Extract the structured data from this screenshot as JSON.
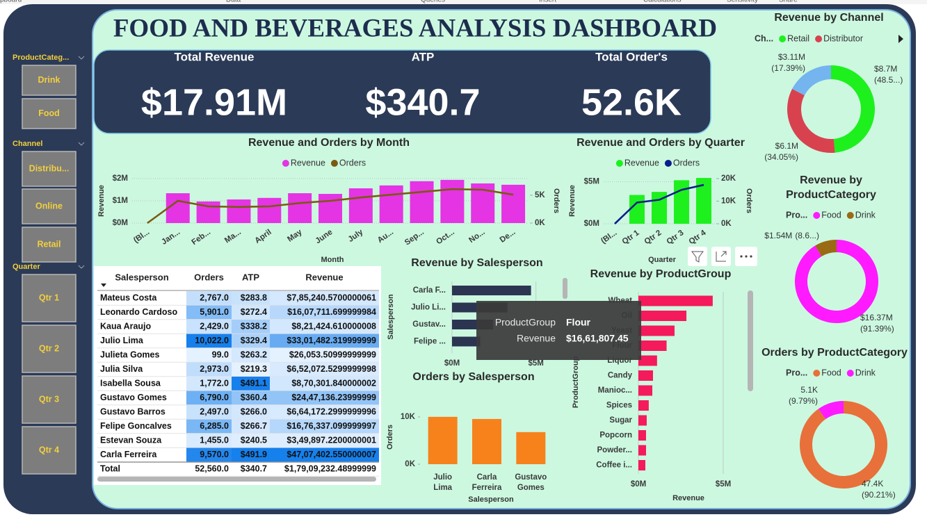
{
  "ribbon": [
    "pboard",
    "Data",
    "Queries",
    "Insert",
    "Calculations",
    "Sensitivity",
    "Share"
  ],
  "title": "FOOD AND BEVERAGES ANALYSIS DASHBOARD",
  "kpis": [
    {
      "label": "Total Revenue",
      "value": "$17.91M"
    },
    {
      "label": "ATP",
      "value": "$340.7"
    },
    {
      "label": "Total Order's",
      "value": "52.6K"
    }
  ],
  "slicers": [
    {
      "title": "ProductCateg...",
      "items": [
        "Drink",
        "Food"
      ]
    },
    {
      "title": "Channel",
      "items": [
        "Distribu...",
        "Online",
        "Retail"
      ]
    },
    {
      "title": "Quarter",
      "items": [
        "Qtr 1",
        "Qtr 2",
        "Qtr 3",
        "Qtr 4"
      ]
    }
  ],
  "table": {
    "columns": [
      "Salesperson",
      "Orders",
      "ATP",
      "Revenue"
    ],
    "rows": [
      [
        "Mateus Costa",
        "2,767.0",
        "$283.8",
        "$7,85,240.5700000061"
      ],
      [
        "Leonardo Cardoso",
        "5,901.0",
        "$272.4",
        "$16,07,711.699999984"
      ],
      [
        "Kaua Araujo",
        "2,429.0",
        "$338.2",
        "$8,21,424.610000008"
      ],
      [
        "Julio Lima",
        "10,022.0",
        "$329.4",
        "$33,01,482.319999999"
      ],
      [
        "Julieta Gomes",
        "99.0",
        "$263.2",
        "$26,053.50999999999"
      ],
      [
        "Julia Silva",
        "2,973.0",
        "$219.3",
        "$6,52,072.5299999998"
      ],
      [
        "Isabella Sousa",
        "1,772.0",
        "$491.1",
        "$8,70,301.840000002"
      ],
      [
        "Gustavo Gomes",
        "6,790.0",
        "$360.4",
        "$24,47,136.23999999"
      ],
      [
        "Gustavo Barros",
        "2,497.0",
        "$266.0",
        "$6,64,172.2999999996"
      ],
      [
        "Felipe Goncalves",
        "6,285.0",
        "$266.7",
        "$16,76,337.099999997"
      ],
      [
        "Estevan Souza",
        "1,455.0",
        "$240.5",
        "$3,49,897.2200000001"
      ],
      [
        "Carla Ferreira",
        "9,570.0",
        "$491.9",
        "$47,07,402.550000007"
      ]
    ],
    "total": [
      "Total",
      "52,560.0",
      "$340.7",
      "$1,79,09,232.48999999"
    ]
  },
  "tooltip": {
    "rows": [
      [
        "ProductGroup",
        "Flour"
      ],
      [
        "Revenue",
        "$16,61,807.45"
      ]
    ]
  },
  "chart_data": [
    {
      "type": "combo",
      "title": "Revenue and Orders by Month",
      "x_label": "Month",
      "y_label": "Revenue",
      "y2_label": "Orders",
      "categories": [
        "(Bl...",
        "Jan...",
        "Feb...",
        "Ma...",
        "April",
        "May",
        "June",
        "July",
        "Au...",
        "Sep...",
        "Oct...",
        "No...",
        "De..."
      ],
      "series": [
        {
          "name": "Revenue",
          "type": "bar",
          "color": "#e434e4",
          "values": [
            null,
            1340000,
            970000,
            1060000,
            1130000,
            1340000,
            1310000,
            1560000,
            1690000,
            1880000,
            1940000,
            1780000,
            1720000
          ]
        },
        {
          "name": "Orders",
          "type": "line",
          "axis": "y2",
          "color": "#7a5a10",
          "values": [
            0,
            4000,
            3000,
            2900,
            3000,
            3600,
            4000,
            4600,
            5100,
            5600,
            6100,
            6000,
            5100
          ]
        }
      ],
      "ylim": [
        0,
        2060000
      ],
      "yticks": [
        {
          "value": 0,
          "label": "$0M"
        },
        {
          "value": 1000000,
          "label": "$1M"
        },
        {
          "value": 2000000,
          "label": "$2M"
        }
      ],
      "y2lim": [
        0,
        8250
      ],
      "y2ticks": [
        {
          "value": 0,
          "label": "0K"
        },
        {
          "value": 5000,
          "label": "5K"
        }
      ],
      "grid": true
    },
    {
      "type": "combo",
      "title": "Revenue and Orders by Quarter",
      "x_label": "Quarter",
      "y_label": "Revenue",
      "y2_label": "Orders",
      "categories": [
        "(Bl...",
        "Qtr 1",
        "Qtr 2",
        "Qtr 3",
        "Qtr 4"
      ],
      "series": [
        {
          "name": "Revenue",
          "type": "bar",
          "color": "#1ef01e",
          "values": [
            null,
            3430000,
            3800000,
            5190000,
            5460000
          ]
        },
        {
          "name": "Orders",
          "type": "line",
          "axis": "y2",
          "color": "#0a1e8c",
          "values": [
            0,
            9400,
            10600,
            15000,
            17200
          ]
        }
      ],
      "ylim": [
        0,
        5550000
      ],
      "yticks": [
        {
          "value": 0,
          "label": "$0M"
        },
        {
          "value": 5000000,
          "label": "$5M"
        }
      ],
      "y2lim": [
        0,
        20600
      ],
      "y2ticks": [
        {
          "value": 0,
          "label": "0K"
        },
        {
          "value": 10000,
          "label": "10K"
        },
        {
          "value": 20000,
          "label": "20K"
        }
      ],
      "grid": true
    },
    {
      "type": "hbar",
      "title": "Revenue by Salesperson",
      "y_label": "Salesperson",
      "categories": [
        "Carla F...",
        "Julio Li...",
        "Gustav...",
        "Felipe ..."
      ],
      "values": [
        4707402.55,
        3301482.32,
        2447136.24,
        1676337.1
      ],
      "color": "#2b3552",
      "xlim": [
        0,
        5800000
      ],
      "xticks": [
        {
          "value": 0,
          "label": "$0M"
        },
        {
          "value": 5000000,
          "label": "$5M"
        }
      ],
      "grid": true
    },
    {
      "type": "vbar",
      "title": "Orders by Salesperson",
      "x_label": "Salesperson",
      "y_label": "Orders",
      "categories": [
        "Julio Lima",
        "Carla Ferreira",
        "Gustavo Gomes"
      ],
      "values": [
        10022,
        9570,
        6790
      ],
      "color": "#f7821c",
      "ylim": [
        0,
        11470
      ],
      "yticks": [
        {
          "value": 0,
          "label": "0K"
        },
        {
          "value": 10000,
          "label": "10K"
        }
      ],
      "grid": false
    },
    {
      "type": "hbar",
      "title": "Revenue by ProductGroup",
      "x_label": "Revenue",
      "y_label": "ProductGroup",
      "categories": [
        "Wheat",
        "Oil",
        "Yeast",
        "Flour",
        "Liquor",
        "Candy",
        "Manioc...",
        "Spices",
        "Sugar",
        "Popcorn",
        "Powder...",
        "Coffee i..."
      ],
      "values": [
        4380000,
        2830000,
        2130000,
        1661807.45,
        1100000,
        860000,
        820000,
        610000,
        490000,
        450000,
        450000,
        410000
      ],
      "color": "#f41a5c",
      "xlim": [
        0,
        6230000
      ],
      "xticks": [
        {
          "value": 0,
          "label": "$0M"
        },
        {
          "value": 5000000,
          "label": "$5M"
        }
      ],
      "grid": true
    },
    {
      "type": "donut",
      "title": "Revenue by Channel",
      "legend_title": "Ch...",
      "categories": [
        "Retail",
        "Distributor",
        null
      ],
      "colors": [
        "#1ef01e",
        "#d8424f",
        "#74b4ef"
      ],
      "values": [
        8700000,
        6100000,
        3110000
      ],
      "value_labels": [
        "$8.7M",
        "$6.1M",
        "$3.11M"
      ],
      "percent_labels": [
        "(48.5...)",
        "(34.05%)",
        "(17.39%)"
      ]
    },
    {
      "type": "donut",
      "title": "Revenue by ProductCategory",
      "legend_title": "Pro...",
      "categories": [
        "Food",
        "Drink"
      ],
      "colors": [
        "#ff1aff",
        "#9a6a14"
      ],
      "values": [
        16370000,
        1540000
      ],
      "value_labels": [
        "$16.37M",
        "$1.54M"
      ],
      "percent_labels": [
        "(91.39%)",
        "(8.6...)"
      ]
    },
    {
      "type": "donut",
      "title": "Orders by ProductCategory",
      "legend_title": "Pro...",
      "categories": [
        "Food",
        "Drink"
      ],
      "colors": [
        "#e8703a",
        "#ff1aff"
      ],
      "values": [
        47400,
        5100
      ],
      "value_labels": [
        "47.4K",
        "5.1K"
      ],
      "percent_labels": [
        "(90.21%)",
        "(9.79%)"
      ]
    }
  ]
}
